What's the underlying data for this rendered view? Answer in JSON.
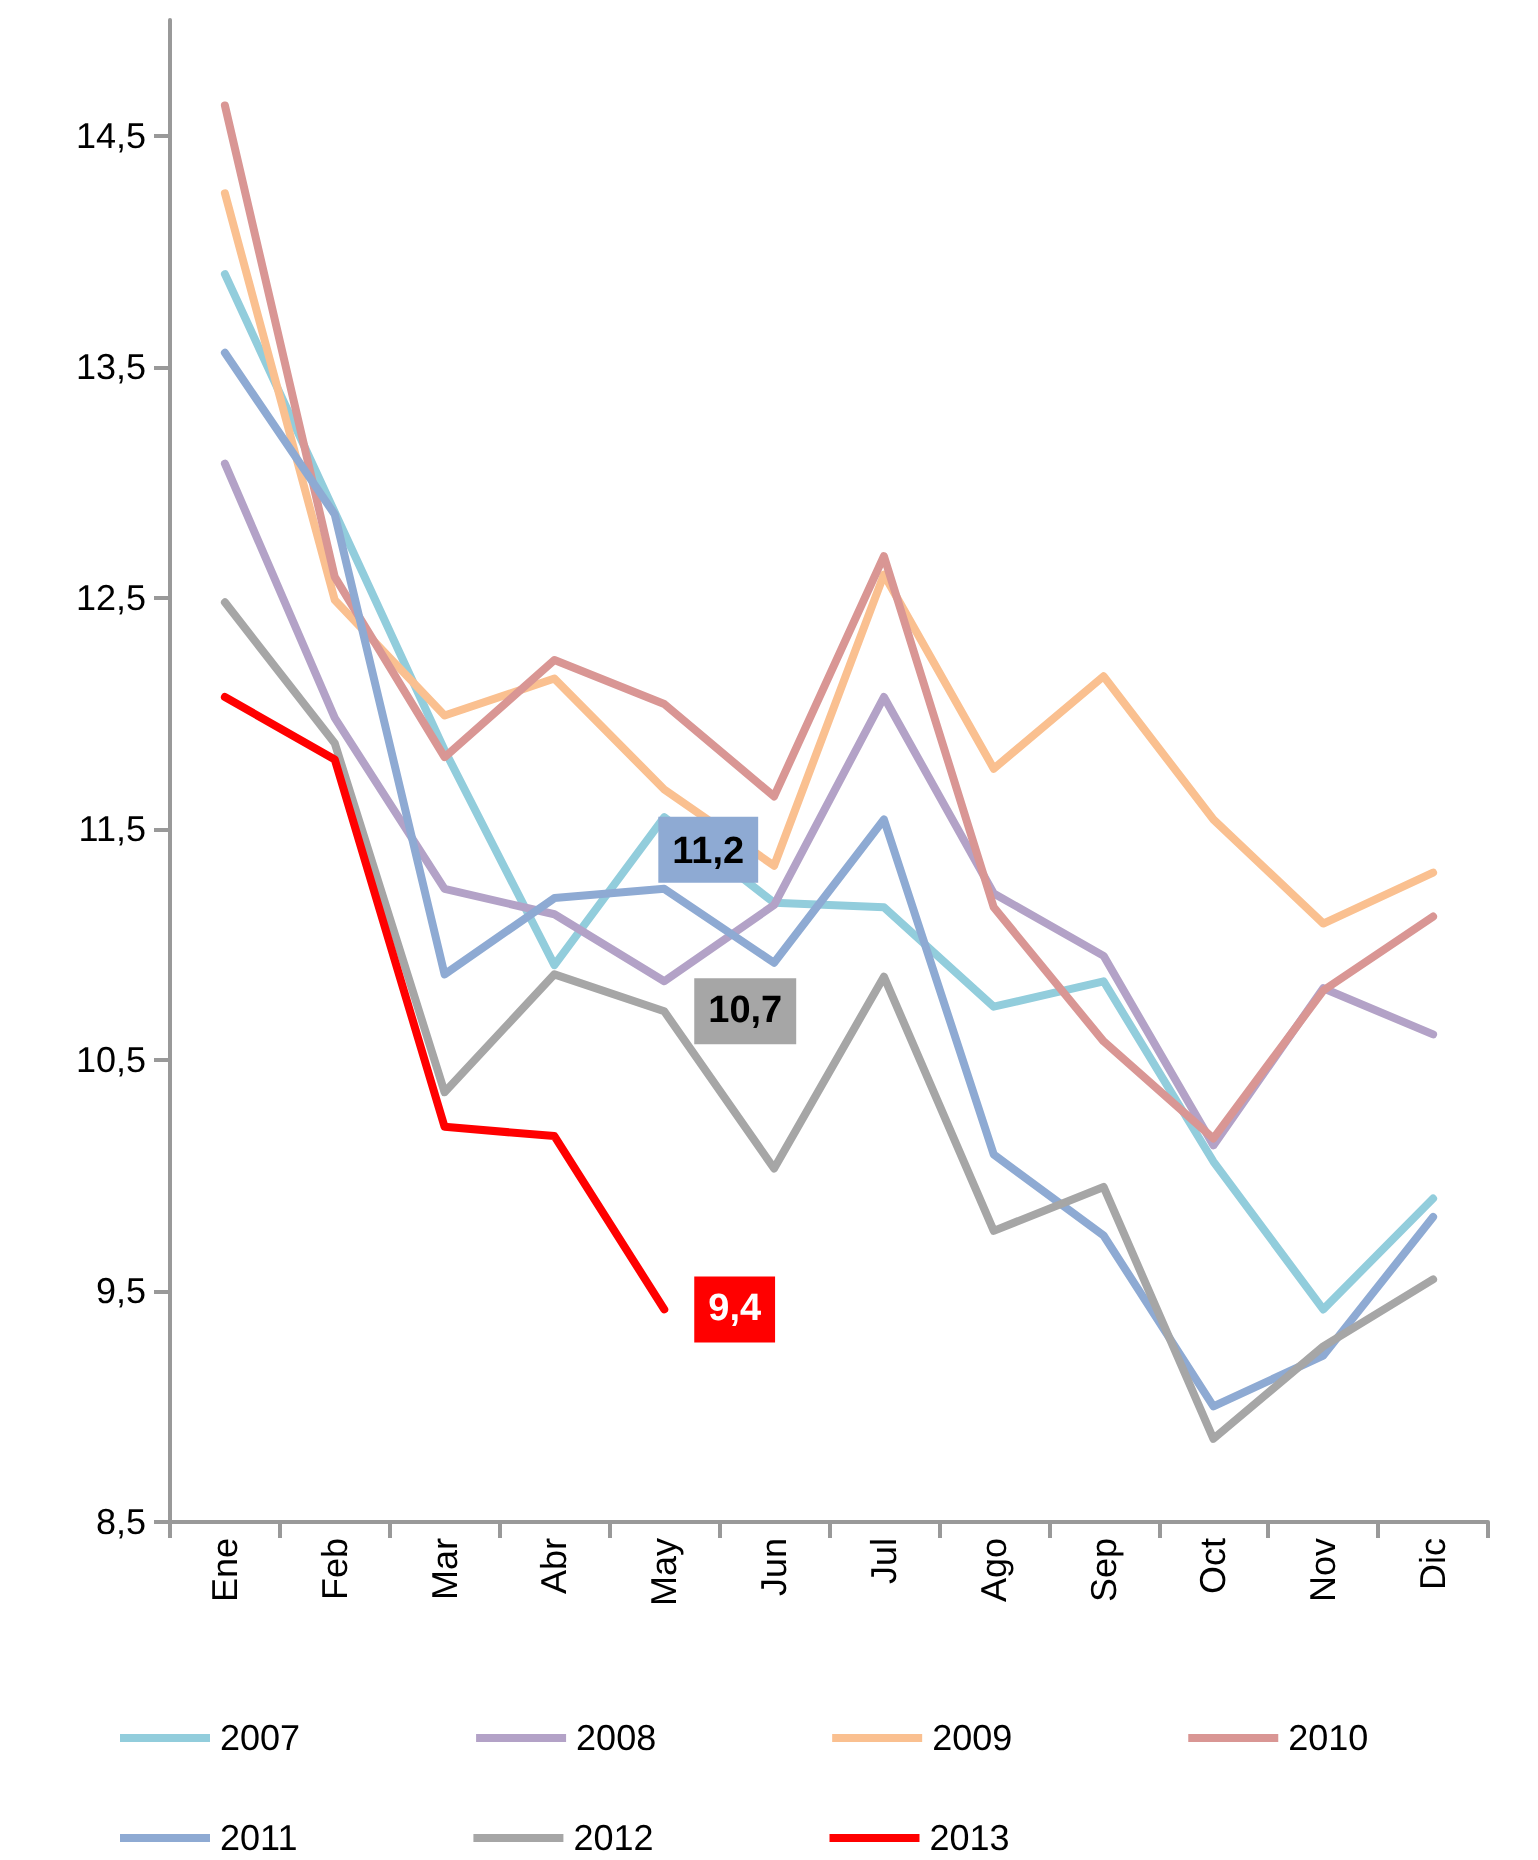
{
  "chart_data": {
    "type": "line",
    "categories": [
      "Ene",
      "Feb",
      "Mar",
      "Abr",
      "May",
      "Jun",
      "Jul",
      "Ago",
      "Sep",
      "Oct",
      "Nov",
      "Dic"
    ],
    "series": [
      {
        "name": "2007",
        "color": "#92cddc",
        "values": [
          13.9,
          12.87,
          11.84,
          10.91,
          11.55,
          11.18,
          11.16,
          10.73,
          10.84,
          10.06,
          9.42,
          9.9
        ]
      },
      {
        "name": "2008",
        "color": "#b3a2c7",
        "values": [
          13.08,
          11.98,
          11.24,
          11.13,
          10.84,
          11.17,
          12.07,
          11.22,
          10.95,
          10.13,
          10.81,
          10.61
        ]
      },
      {
        "name": "2009",
        "color": "#fac090",
        "values": [
          14.25,
          12.49,
          11.99,
          12.15,
          11.67,
          11.34,
          12.6,
          11.76,
          12.16,
          11.54,
          11.09,
          11.31
        ]
      },
      {
        "name": "2010",
        "color": "#d99694",
        "values": [
          14.63,
          12.59,
          11.81,
          12.23,
          12.04,
          11.64,
          12.68,
          11.16,
          10.58,
          10.16,
          10.8,
          11.12
        ]
      },
      {
        "name": "2011",
        "color": "#8eaad3",
        "values": [
          13.56,
          12.86,
          10.87,
          11.2,
          11.24,
          10.92,
          11.54,
          10.09,
          9.74,
          9.0,
          9.22,
          9.82
        ],
        "value_labels": [
          null,
          null,
          null,
          null,
          "11,2",
          null,
          null,
          null,
          null,
          null,
          null,
          null
        ]
      },
      {
        "name": "2012",
        "color": "#a6a6a6",
        "values": [
          12.48,
          11.87,
          10.36,
          10.87,
          10.71,
          10.03,
          10.86,
          9.76,
          9.95,
          8.86,
          9.26,
          9.55
        ],
        "value_labels": [
          null,
          null,
          null,
          null,
          "10,7",
          null,
          null,
          null,
          null,
          null,
          null,
          null
        ]
      },
      {
        "name": "2013",
        "color": "#ff0000",
        "values": [
          12.07,
          11.8,
          10.21,
          10.17,
          9.42,
          null,
          null,
          null,
          null,
          null,
          null,
          null
        ],
        "value_labels": [
          null,
          null,
          null,
          null,
          "9,4",
          null,
          null,
          null,
          null,
          null,
          null,
          null
        ]
      }
    ],
    "ylim": [
      8.5,
      15
    ],
    "yticks": [
      {
        "value": 8.5,
        "label": "8,5"
      },
      {
        "value": 9.5,
        "label": "9,5"
      },
      {
        "value": 10.5,
        "label": "10,5"
      },
      {
        "value": 11.5,
        "label": "11,5"
      },
      {
        "value": 12.5,
        "label": "12,5"
      },
      {
        "value": 13.5,
        "label": "13,5"
      },
      {
        "value": 14.5,
        "label": "14,5"
      }
    ],
    "grid": false,
    "legend": "bottom",
    "marker": "none",
    "line_style": "solid"
  }
}
